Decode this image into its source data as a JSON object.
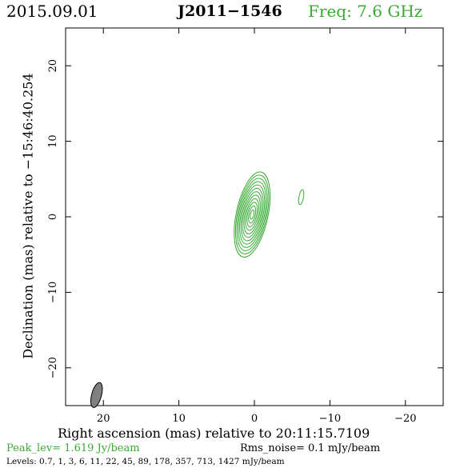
{
  "header": {
    "date": "2015.09.01",
    "source": "J2011−1546",
    "frequency": "Freq: 7.6 GHz"
  },
  "colors": {
    "contour": "#3aaa35",
    "beam": "#808080",
    "text_accent": "#3aaa35"
  },
  "chart_data": {
    "type": "contour",
    "x_label": "Right ascension (mas) relative to 20:11:15.7109",
    "y_label": "Declination (mas) relative to −15:46:40.254",
    "x_range": [
      25,
      -25
    ],
    "y_range": [
      -25,
      25
    ],
    "x_ticks": [
      20,
      10,
      0,
      -10,
      -20
    ],
    "x_tick_labels": [
      "20",
      "10",
      "0",
      "−10",
      "−20"
    ],
    "y_ticks": [
      20,
      10,
      0,
      -10,
      -20
    ],
    "y_tick_labels": [
      "20",
      "10",
      "0",
      "−10",
      "−20"
    ],
    "components": [
      {
        "center": [
          0.3,
          0.3
        ],
        "major_axis": 11.5,
        "minor_axis": 4.2,
        "position_angle": 12,
        "contour_count": 12
      },
      {
        "center": [
          -6.2,
          2.6
        ],
        "major_axis": 2.0,
        "minor_axis": 0.6,
        "position_angle": 10,
        "contour_count": 1
      }
    ],
    "beam": {
      "center": [
        20.9,
        -23.6
      ],
      "major_axis": 3.4,
      "minor_axis": 1.3,
      "position_angle": 15
    },
    "peak_level": "Peak_lev=  1.619 Jy/beam",
    "rms_noise": "Rms_noise=   0.1 mJy/beam",
    "levels": "Levels: 0.7,   1,   3,   6,   11,   22,   45,   89, 178, 357, 713, 1427 mJy/beam"
  }
}
